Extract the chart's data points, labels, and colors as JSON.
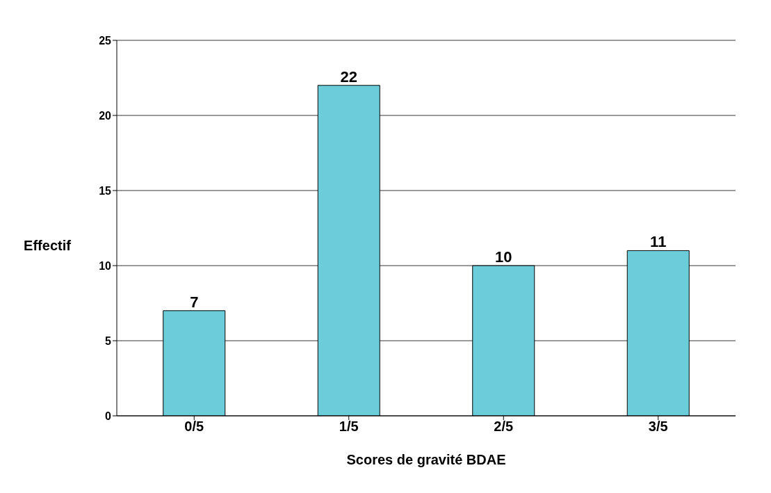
{
  "chart_data": {
    "type": "bar",
    "xlabel": "Scores de gravité BDAE",
    "ylabel": "Effectif",
    "categories": [
      "0/5",
      "1/5",
      "2/5",
      "3/5"
    ],
    "values": [
      7,
      22,
      10,
      11
    ],
    "color": "#6ccdda",
    "ylim": [
      0,
      25
    ],
    "yticks": [
      0,
      5,
      10,
      15,
      20,
      25
    ],
    "grid": "y",
    "data_labels": true
  }
}
